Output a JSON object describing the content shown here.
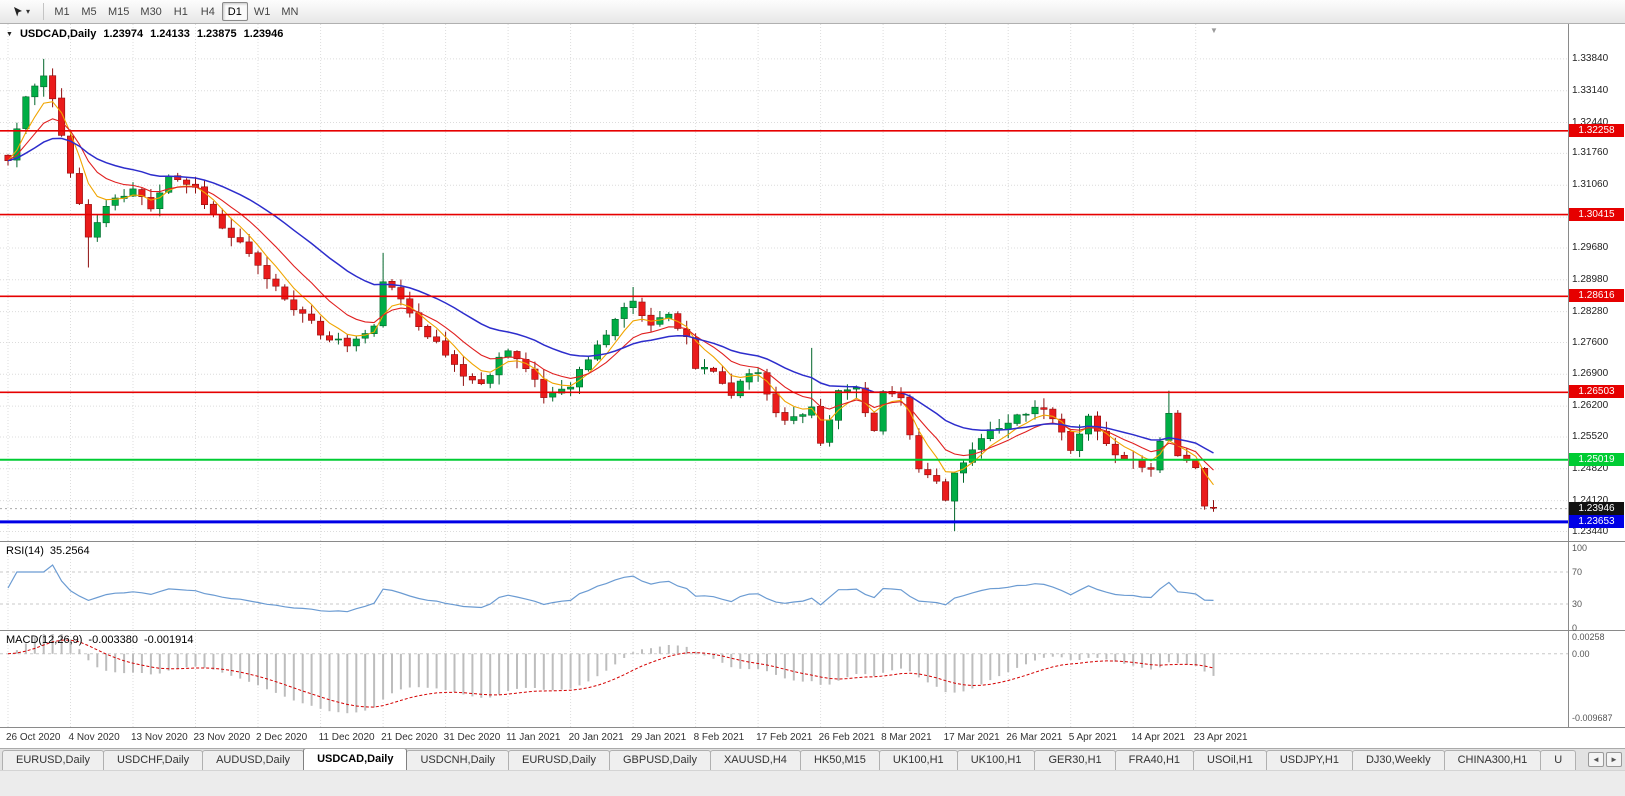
{
  "icons": {
    "tool_caret": "▾",
    "collapse_chart": "▼",
    "chart_shift": "▼",
    "tab_scroll_left": "◄",
    "tab_scroll_right": "►"
  },
  "toolbar": {
    "timeframes": [
      "M1",
      "M5",
      "M15",
      "M30",
      "H1",
      "H4",
      "D1",
      "W1",
      "MN"
    ],
    "active_timeframe": "D1"
  },
  "chart": {
    "title": {
      "symbol": "USDCAD,Daily",
      "open": "1.23974",
      "high": "1.24133",
      "low": "1.23875",
      "close": "1.23946"
    },
    "price_axis": [
      "1.33840",
      "1.33140",
      "1.32440",
      "1.31760",
      "1.31060",
      "1.30360",
      "1.29680",
      "1.28980",
      "1.28280",
      "1.27600",
      "1.26900",
      "1.26200",
      "1.25520",
      "1.24820",
      "1.24120",
      "1.23440"
    ],
    "levels": [
      {
        "price": 1.32258,
        "label": "1.32258",
        "color": "#e60000",
        "width": 1.6,
        "kind": "resistance"
      },
      {
        "price": 1.30415,
        "label": "1.30415",
        "color": "#e60000",
        "width": 1.6,
        "kind": "resistance"
      },
      {
        "price": 1.28616,
        "label": "1.28616",
        "color": "#e60000",
        "width": 1.6,
        "kind": "resistance"
      },
      {
        "price": 1.26503,
        "label": "1.26503",
        "color": "#e60000",
        "width": 1.6,
        "kind": "resistance"
      },
      {
        "price": 1.25019,
        "label": "1.25019",
        "color": "#00cc33",
        "width": 2,
        "kind": "support"
      },
      {
        "price": 1.23653,
        "label": "1.23653",
        "color": "#0000e6",
        "width": 3,
        "kind": "support"
      }
    ],
    "current_price": {
      "label": "1.23946",
      "value": 1.23946,
      "box_color": "#111111"
    }
  },
  "chart_data": {
    "type": "candlestick",
    "symbol": "USDCAD",
    "timeframe": "Daily",
    "last_candle": {
      "open": 1.23974,
      "high": 1.24133,
      "low": 1.23875,
      "close": 1.23946
    },
    "x_labels": [
      "26 Oct 2020",
      "4 Nov 2020",
      "13 Nov 2020",
      "23 Nov 2020",
      "2 Dec 2020",
      "11 Dec 2020",
      "21 Dec 2020",
      "31 Dec 2020",
      "11 Jan 2021",
      "20 Jan 2021",
      "29 Jan 2021",
      "8 Feb 2021",
      "17 Feb 2021",
      "26 Feb 2021",
      "8 Mar 2021",
      "17 Mar 2021",
      "26 Mar 2021",
      "5 Apr 2021",
      "14 Apr 2021",
      "23 Apr 2021"
    ],
    "bars_per_label": 7,
    "bar_count": 136,
    "price_window": {
      "top": 1.3452,
      "bottom": 1.2332
    },
    "trend_anchors": [
      [
        0,
        1.316
      ],
      [
        2,
        1.33
      ],
      [
        4,
        1.3345
      ],
      [
        5,
        1.329
      ],
      [
        7,
        1.314
      ],
      [
        9,
        1.299
      ],
      [
        11,
        1.306
      ],
      [
        14,
        1.3095
      ],
      [
        16,
        1.306
      ],
      [
        18,
        1.313
      ],
      [
        21,
        1.31
      ],
      [
        24,
        1.301
      ],
      [
        26,
        1.2975
      ],
      [
        28,
        1.2925
      ],
      [
        31,
        1.286
      ],
      [
        33,
        1.282
      ],
      [
        35,
        1.278
      ],
      [
        38,
        1.2755
      ],
      [
        41,
        1.279
      ],
      [
        42,
        1.29
      ],
      [
        44,
        1.285
      ],
      [
        47,
        1.278
      ],
      [
        49,
        1.2732
      ],
      [
        51,
        1.269
      ],
      [
        53,
        1.2665
      ],
      [
        55,
        1.2725
      ],
      [
        56,
        1.275
      ],
      [
        58,
        1.27
      ],
      [
        60,
        1.264
      ],
      [
        63,
        1.267
      ],
      [
        66,
        1.275
      ],
      [
        69,
        1.284
      ],
      [
        70,
        1.2845
      ],
      [
        72,
        1.2805
      ],
      [
        74,
        1.282
      ],
      [
        76,
        1.2775
      ],
      [
        77,
        1.2705
      ],
      [
        79,
        1.269
      ],
      [
        81,
        1.2645
      ],
      [
        83,
        1.269
      ],
      [
        84,
        1.2695
      ],
      [
        86,
        1.2605
      ],
      [
        88,
        1.259
      ],
      [
        90,
        1.262
      ],
      [
        91,
        1.2545
      ],
      [
        93,
        1.265
      ],
      [
        95,
        1.266
      ],
      [
        97,
        1.2565
      ],
      [
        98,
        1.265
      ],
      [
        100,
        1.263
      ],
      [
        102,
        1.248
      ],
      [
        104,
        1.2455
      ],
      [
        105,
        1.242
      ],
      [
        106,
        1.247
      ],
      [
        108,
        1.2515
      ],
      [
        110,
        1.2575
      ],
      [
        112,
        1.258
      ],
      [
        114,
        1.2605
      ],
      [
        116,
        1.2615
      ],
      [
        118,
        1.256
      ],
      [
        119,
        1.253
      ],
      [
        121,
        1.2595
      ],
      [
        123,
        1.2535
      ],
      [
        125,
        1.25
      ],
      [
        126,
        1.2505
      ],
      [
        128,
        1.248
      ],
      [
        130,
        1.261
      ],
      [
        131,
        1.2505
      ],
      [
        133,
        1.248
      ],
      [
        134,
        1.24
      ],
      [
        135,
        1.23946
      ]
    ],
    "wick_overrides": [
      {
        "i": 4,
        "high": 1.3384
      },
      {
        "i": 9,
        "low": 1.2925
      },
      {
        "i": 42,
        "high": 1.2957
      },
      {
        "i": 70,
        "high": 1.2882
      },
      {
        "i": 90,
        "high": 1.2748
      },
      {
        "i": 106,
        "low": 1.2345
      },
      {
        "i": 130,
        "high": 1.2654
      },
      {
        "i": 134,
        "low": 1.2392
      }
    ],
    "key_levels": [
      1.32258,
      1.30415,
      1.28616,
      1.26503,
      1.25019,
      1.23653
    ],
    "moving_averages": [
      {
        "period": 5,
        "color": "#f0a500",
        "name": "fast-ma"
      },
      {
        "period": 10,
        "color": "#e02020",
        "name": "mid-ma"
      },
      {
        "period": 24,
        "color": "#2d2dcc",
        "name": "slow-ma"
      }
    ],
    "candle_colors": {
      "up": "#00ad45",
      "up_dark": "#00662a",
      "down": "#ea1b1b",
      "down_dark": "#8f0f0f"
    },
    "grid_color": "#dcdcdc",
    "rsi": {
      "period": 14,
      "current": 35.2564,
      "color": "#6b9bd2",
      "overbought": 70,
      "oversold": 30,
      "range": [
        0,
        100
      ]
    },
    "macd": {
      "fast": 12,
      "slow": 26,
      "signal_period": 9,
      "main": -0.00338,
      "signal": -0.001914,
      "hist_color": "#bdbdbd",
      "signal_color": "#d40000",
      "axis_top": 0.003,
      "axis_bottom": -0.0105
    }
  },
  "rsi_panel": {
    "label": "RSI(14)",
    "value": "35.2564",
    "axis": [
      {
        "label": "100",
        "value": 100
      },
      {
        "label": "70",
        "value": 70
      },
      {
        "label": "30",
        "value": 30
      },
      {
        "label": "0",
        "value": 0
      }
    ]
  },
  "macd_panel": {
    "label": "MACD(12,26,9)",
    "value_main": "-0.003380",
    "value_signal": "-0.001914",
    "axis": [
      {
        "label": "0.00258",
        "value": 0.00258
      },
      {
        "label": "0.00",
        "value": 0
      },
      {
        "label": "-0.009687",
        "value": -0.009687
      }
    ]
  },
  "tabs": {
    "items": [
      {
        "label": "EURUSD,Daily",
        "active": false
      },
      {
        "label": "USDCHF,Daily",
        "active": false
      },
      {
        "label": "AUDUSD,Daily",
        "active": false
      },
      {
        "label": "USDCAD,Daily",
        "active": true
      },
      {
        "label": "USDCNH,Daily",
        "active": false
      },
      {
        "label": "EURUSD,Daily",
        "active": false
      },
      {
        "label": "GBPUSD,Daily",
        "active": false
      },
      {
        "label": "XAUUSD,H4",
        "active": false
      },
      {
        "label": "HK50,M15",
        "active": false
      },
      {
        "label": "UK100,H1",
        "active": false
      },
      {
        "label": "UK100,H1",
        "active": false
      },
      {
        "label": "GER30,H1",
        "active": false
      },
      {
        "label": "FRA40,H1",
        "active": false
      },
      {
        "label": "USOil,H1",
        "active": false
      },
      {
        "label": "USDJPY,H1",
        "active": false
      },
      {
        "label": "DJ30,Weekly",
        "active": false
      },
      {
        "label": "CHINA300,H1",
        "active": false
      },
      {
        "label": "U",
        "active": false
      }
    ]
  }
}
